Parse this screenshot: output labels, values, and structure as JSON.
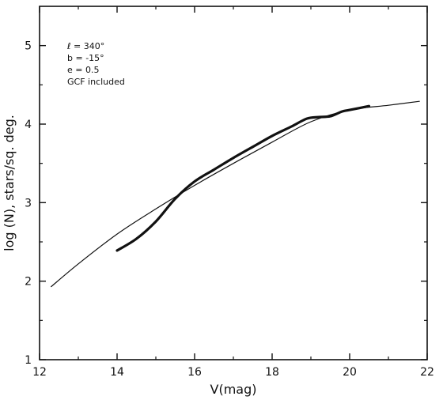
{
  "chart_data": {
    "type": "line",
    "xlabel": "V(mag)",
    "ylabel": "log (N), stars/sq. deg.",
    "xlim": [
      12,
      22
    ],
    "ylim": [
      1,
      5.5
    ],
    "x_ticks": [
      12,
      14,
      16,
      18,
      20,
      22
    ],
    "y_ticks": [
      1,
      2,
      3,
      4,
      5
    ],
    "grid": false,
    "annotations": [
      "ℓ = 340°",
      "b = -15°",
      "e = 0.5",
      "GCF included"
    ],
    "series": [
      {
        "style": "thin",
        "x": [
          12.3,
          13.0,
          14.0,
          15.0,
          16.0,
          17.0,
          18.0,
          19.0,
          20.0,
          21.0,
          21.8
        ],
        "y": [
          1.93,
          2.22,
          2.6,
          2.92,
          3.22,
          3.5,
          3.77,
          4.03,
          4.18,
          4.24,
          4.29
        ]
      },
      {
        "style": "thick",
        "x": [
          14.0,
          14.5,
          15.0,
          15.5,
          16.0,
          16.5,
          17.0,
          17.5,
          18.0,
          18.5,
          18.9,
          19.2,
          19.5,
          19.8,
          20.0,
          20.5
        ],
        "y": [
          2.39,
          2.54,
          2.76,
          3.05,
          3.27,
          3.42,
          3.57,
          3.71,
          3.85,
          3.97,
          4.07,
          4.09,
          4.1,
          4.16,
          4.18,
          4.23
        ]
      }
    ]
  }
}
